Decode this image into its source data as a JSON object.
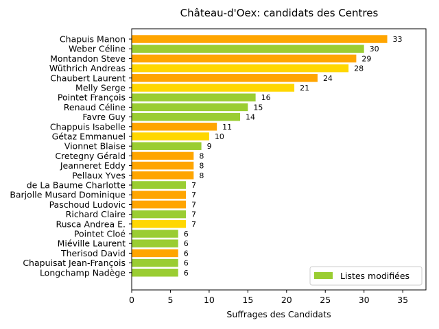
{
  "chart_data": {
    "type": "bar",
    "orientation": "horizontal",
    "title": "Château-d'Oex: candidats des Centres",
    "xlabel": "Suffrages des Candidats",
    "ylabel": "",
    "xlim": [
      0,
      38
    ],
    "xticks": [
      0,
      5,
      10,
      15,
      20,
      25,
      30,
      35
    ],
    "grid": false,
    "legend": {
      "label": "Listes modifiées",
      "color": "#9acd32",
      "placement": "lower-right"
    },
    "colors": {
      "orange": "#ffa500",
      "green": "#9acd32",
      "gold": "#ffd700"
    },
    "categories": [
      "Chapuis Manon",
      "Weber Céline",
      "Montandon Steve",
      "Wüthrich Andreas",
      "Chaubert Laurent",
      "Melly Serge",
      "Pointet François",
      "Renaud Céline",
      "Favre Guy",
      "Chappuis Isabelle",
      "Gétaz Emmanuel",
      "Vionnet Blaise",
      "Cretegny Gérald",
      "Jeanneret Eddy",
      "Pellaux Yves",
      "de La Baume Charlotte",
      "Barjolle Musard Dominique",
      "Paschoud Ludovic",
      "Richard Claire",
      "Rusca Andrea E.",
      "Pointet Cloé",
      "Miéville Laurent",
      "Therisod David",
      "Chapuisat Jean-François",
      "Longchamp Nadège"
    ],
    "values": [
      33,
      30,
      29,
      28,
      24,
      21,
      16,
      15,
      14,
      11,
      10,
      9,
      8,
      8,
      8,
      7,
      7,
      7,
      7,
      7,
      6,
      6,
      6,
      6,
      6
    ],
    "bar_colors": [
      "orange",
      "green",
      "orange",
      "gold",
      "orange",
      "gold",
      "green",
      "green",
      "green",
      "orange",
      "gold",
      "green",
      "orange",
      "orange",
      "orange",
      "green",
      "orange",
      "orange",
      "green",
      "gold",
      "green",
      "green",
      "orange",
      "green",
      "green"
    ]
  }
}
